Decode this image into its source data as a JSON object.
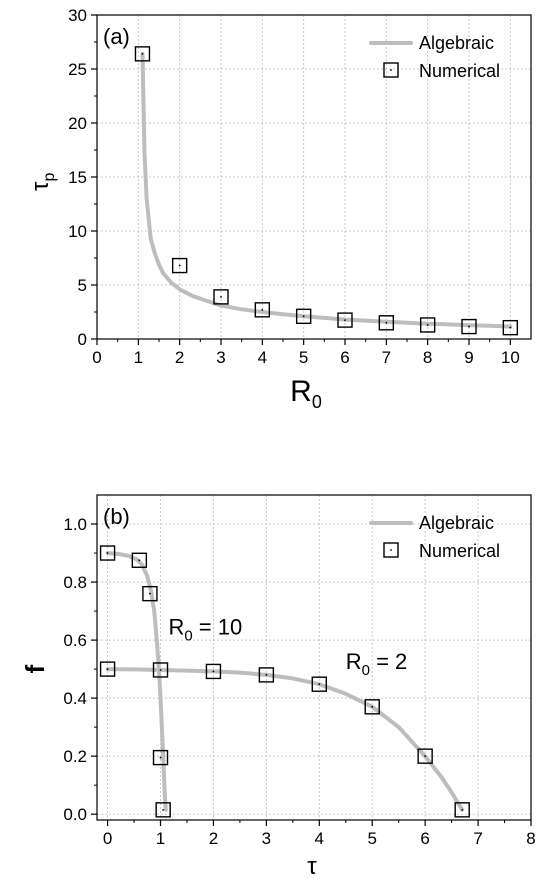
{
  "chart_data": [
    {
      "type": "line",
      "panel_label": "(a)",
      "xlabel_main": "R",
      "xlabel_sub": "0",
      "ylabel_main": "τ",
      "ylabel_sub": "p",
      "xlim": [
        0,
        10.5
      ],
      "ylim": [
        0,
        30
      ],
      "xticks": [
        0,
        1,
        2,
        3,
        4,
        5,
        6,
        7,
        8,
        9,
        10
      ],
      "yticks": [
        0,
        5,
        10,
        15,
        20,
        25,
        30
      ],
      "legend": {
        "placement": "top-right",
        "line_label": "Algebraic",
        "marker_label": "Numerical"
      },
      "series": [
        {
          "name": "Algebraic",
          "kind": "line",
          "x": [
            1.1,
            1.15,
            1.2,
            1.3,
            1.4,
            1.5,
            1.6,
            1.8,
            2.0,
            2.3,
            2.6,
            3.0,
            3.5,
            4.0,
            4.5,
            5.0,
            5.5,
            6.0,
            6.5,
            7.0,
            7.5,
            8.0,
            8.5,
            9.0,
            9.5,
            10.0
          ],
          "y": [
            26.4,
            17.2,
            13.0,
            9.3,
            7.9,
            6.9,
            6.1,
            5.2,
            4.6,
            4.0,
            3.6,
            3.1,
            2.75,
            2.5,
            2.3,
            2.1,
            1.95,
            1.8,
            1.7,
            1.6,
            1.5,
            1.42,
            1.35,
            1.28,
            1.22,
            1.16
          ]
        },
        {
          "name": "Numerical",
          "kind": "markers",
          "x": [
            1.1,
            2,
            3,
            4,
            5,
            6,
            7,
            8,
            9,
            10
          ],
          "y": [
            26.4,
            6.8,
            3.9,
            2.7,
            2.1,
            1.75,
            1.5,
            1.3,
            1.15,
            1.05
          ]
        }
      ]
    },
    {
      "type": "line",
      "panel_label": "(b)",
      "xlabel_main": "τ",
      "ylabel_main": "f",
      "xlim": [
        -0.2,
        8
      ],
      "ylim": [
        -0.02,
        1.1
      ],
      "xticks": [
        0,
        1,
        2,
        3,
        4,
        5,
        6,
        7,
        8
      ],
      "yticks": [
        0.0,
        0.2,
        0.4,
        0.6,
        0.8,
        1.0
      ],
      "ytick_labels": [
        "0.0",
        "0.2",
        "0.4",
        "0.6",
        "0.8",
        "1.0"
      ],
      "legend": {
        "placement": "top-right",
        "line_label": "Algebraic",
        "marker_label": "Numerical"
      },
      "annotations": [
        {
          "main": "R",
          "sub": "0",
          "rest": " = 10",
          "x": 1.15,
          "y": 0.62
        },
        {
          "main": "R",
          "sub": "0",
          "rest": " = 2",
          "x": 4.5,
          "y": 0.5
        }
      ],
      "series": [
        {
          "name": "Algebraic R0=10",
          "kind": "line",
          "x": [
            0,
            0.2,
            0.4,
            0.55,
            0.65,
            0.75,
            0.82,
            0.88,
            0.93,
            0.97,
            1.0,
            1.03,
            1.06,
            1.08,
            1.1
          ],
          "y": [
            0.9,
            0.897,
            0.89,
            0.878,
            0.86,
            0.82,
            0.77,
            0.7,
            0.6,
            0.5,
            0.4,
            0.28,
            0.16,
            0.07,
            0.015
          ]
        },
        {
          "name": "Algebraic R0=2",
          "kind": "line",
          "x": [
            0,
            0.5,
            1,
            1.5,
            2,
            2.5,
            3,
            3.5,
            4,
            4.5,
            5,
            5.5,
            6,
            6.3,
            6.5,
            6.7
          ],
          "y": [
            0.5,
            0.499,
            0.497,
            0.495,
            0.492,
            0.488,
            0.48,
            0.468,
            0.448,
            0.415,
            0.37,
            0.3,
            0.2,
            0.13,
            0.075,
            0.015
          ]
        },
        {
          "name": "Numerical R0=10",
          "kind": "markers",
          "x": [
            0,
            0.6,
            0.8,
            1.0,
            1.05
          ],
          "y": [
            0.9,
            0.875,
            0.76,
            0.195,
            0.015
          ]
        },
        {
          "name": "Numerical R0=2",
          "kind": "markers",
          "x": [
            0,
            1,
            2,
            3,
            4,
            5,
            6,
            6.7
          ],
          "y": [
            0.5,
            0.497,
            0.492,
            0.48,
            0.448,
            0.37,
            0.2,
            0.015
          ]
        }
      ]
    }
  ]
}
